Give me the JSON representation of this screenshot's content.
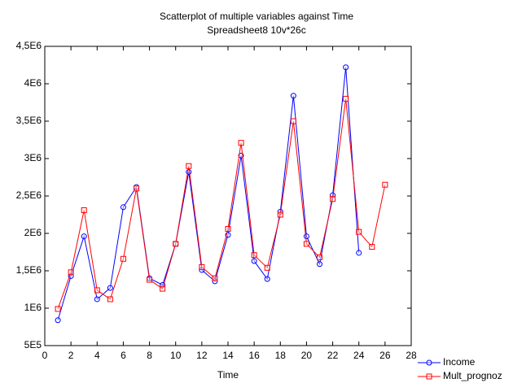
{
  "chart_data": {
    "type": "line",
    "title": "Scatterplot of multiple variables against Time",
    "subtitle": "Spreadsheet8 10v*26c",
    "x_label": "Time",
    "x": [
      1,
      2,
      3,
      4,
      5,
      6,
      7,
      8,
      9,
      10,
      11,
      12,
      13,
      14,
      15,
      16,
      17,
      18,
      19,
      20,
      21,
      22,
      23,
      24,
      25,
      26
    ],
    "series": [
      {
        "name": "Income",
        "color": "#0000ff",
        "marker": "circle",
        "values": [
          840000,
          1430000,
          1960000,
          1120000,
          1270000,
          2350000,
          2620000,
          1400000,
          1310000,
          1860000,
          2820000,
          1510000,
          1360000,
          1980000,
          3040000,
          1630000,
          1390000,
          2290000,
          3840000,
          1960000,
          1590000,
          2510000,
          4220000,
          1740000,
          null,
          null
        ]
      },
      {
        "name": "Mult_prognoz",
        "color": "#ff0000",
        "marker": "square",
        "values": [
          990000,
          1480000,
          2310000,
          1240000,
          1120000,
          1660000,
          2600000,
          1380000,
          1260000,
          1860000,
          2900000,
          1550000,
          1400000,
          2060000,
          3210000,
          1710000,
          1540000,
          2250000,
          3500000,
          1860000,
          1680000,
          2460000,
          3800000,
          2020000,
          1820000,
          2650000
        ]
      }
    ],
    "xlim": [
      0,
      28
    ],
    "xticks": [
      0,
      2,
      4,
      6,
      8,
      10,
      12,
      14,
      16,
      18,
      20,
      22,
      24,
      26,
      28
    ],
    "ylim": [
      500000,
      4500000
    ],
    "yticks": [
      {
        "value": 500000,
        "label": "5E5"
      },
      {
        "value": 1000000,
        "label": "1E6"
      },
      {
        "value": 1500000,
        "label": "1,5E6"
      },
      {
        "value": 2000000,
        "label": "2E6"
      },
      {
        "value": 2500000,
        "label": "2,5E6"
      },
      {
        "value": 3000000,
        "label": "3E6"
      },
      {
        "value": 3500000,
        "label": "3,5E6"
      },
      {
        "value": 4000000,
        "label": "4E6"
      },
      {
        "value": 4500000,
        "label": "4,5E6"
      }
    ],
    "grid": false,
    "legend": "bottom-right"
  }
}
